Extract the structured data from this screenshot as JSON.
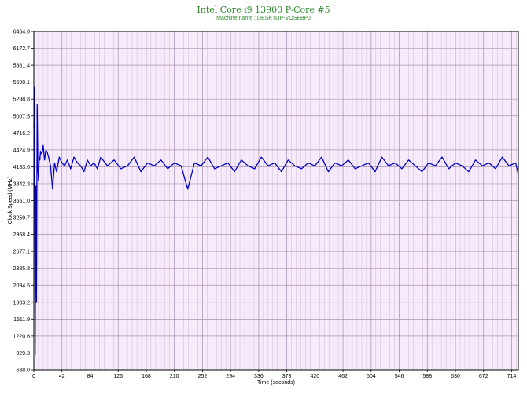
{
  "chart_data": {
    "type": "line",
    "title": "Intel Core i9 13900 P-Core #5",
    "subtitle": "Machine name : DESKTOP-VOSEBPJ",
    "xlabel": "Time (seconds)",
    "ylabel": "Clock Speed (MHz)",
    "xlim": [
      0,
      724
    ],
    "ylim": [
      638.0,
      6464.0
    ],
    "x_ticks": [
      "0",
      "42",
      "84",
      "126",
      "168",
      "210",
      "252",
      "294",
      "336",
      "378",
      "420",
      "462",
      "504",
      "546",
      "588",
      "630",
      "672",
      "714"
    ],
    "y_ticks": [
      "638.0",
      "929.3",
      "1220.6",
      "1511.9",
      "1803.2",
      "2094.5",
      "2385.8",
      "2677.1",
      "2968.4",
      "3259.7",
      "3551.0",
      "3842.3",
      "4133.6",
      "4424.9",
      "4716.2",
      "5007.5",
      "5298.8",
      "5590.1",
      "5881.4",
      "6172.7",
      "6464.0"
    ],
    "grid": true,
    "series": [
      {
        "color": "#0000cc",
        "x": [
          0,
          1,
          2,
          3,
          4,
          5,
          6,
          7,
          8,
          9,
          10,
          12,
          14,
          16,
          18,
          20,
          22,
          25,
          28,
          31,
          34,
          38,
          42,
          46,
          50,
          55,
          60,
          65,
          70,
          75,
          80,
          85,
          90,
          95,
          100,
          110,
          120,
          130,
          140,
          150,
          160,
          170,
          180,
          190,
          200,
          210,
          220,
          230,
          240,
          250,
          260,
          270,
          280,
          290,
          300,
          310,
          320,
          330,
          340,
          350,
          360,
          370,
          380,
          390,
          400,
          410,
          420,
          430,
          440,
          450,
          460,
          470,
          480,
          490,
          500,
          510,
          520,
          530,
          540,
          550,
          560,
          570,
          580,
          590,
          600,
          610,
          620,
          630,
          640,
          650,
          660,
          670,
          680,
          690,
          700,
          710,
          720,
          724
        ],
        "y": [
          4800,
          5500,
          900,
          3800,
          1800,
          5200,
          4100,
          3900,
          4300,
          4250,
          4400,
          4350,
          4500,
          4250,
          4420,
          4380,
          4300,
          4150,
          3750,
          4200,
          4050,
          4300,
          4200,
          4150,
          4250,
          4100,
          4300,
          4200,
          4150,
          4050,
          4250,
          4150,
          4200,
          4100,
          4300,
          4150,
          4250,
          4100,
          4150,
          4300,
          4050,
          4200,
          4150,
          4250,
          4100,
          4200,
          4150,
          3750,
          4200,
          4150,
          4300,
          4100,
          4150,
          4200,
          4050,
          4250,
          4150,
          4100,
          4300,
          4150,
          4200,
          4050,
          4250,
          4150,
          4100,
          4200,
          4150,
          4300,
          4050,
          4200,
          4150,
          4250,
          4100,
          4150,
          4200,
          4050,
          4300,
          4150,
          4200,
          4100,
          4250,
          4150,
          4050,
          4200,
          4150,
          4300,
          4100,
          4200,
          4150,
          4050,
          4250,
          4150,
          4200,
          4100,
          4300,
          4150,
          4200,
          4000
        ]
      }
    ]
  }
}
